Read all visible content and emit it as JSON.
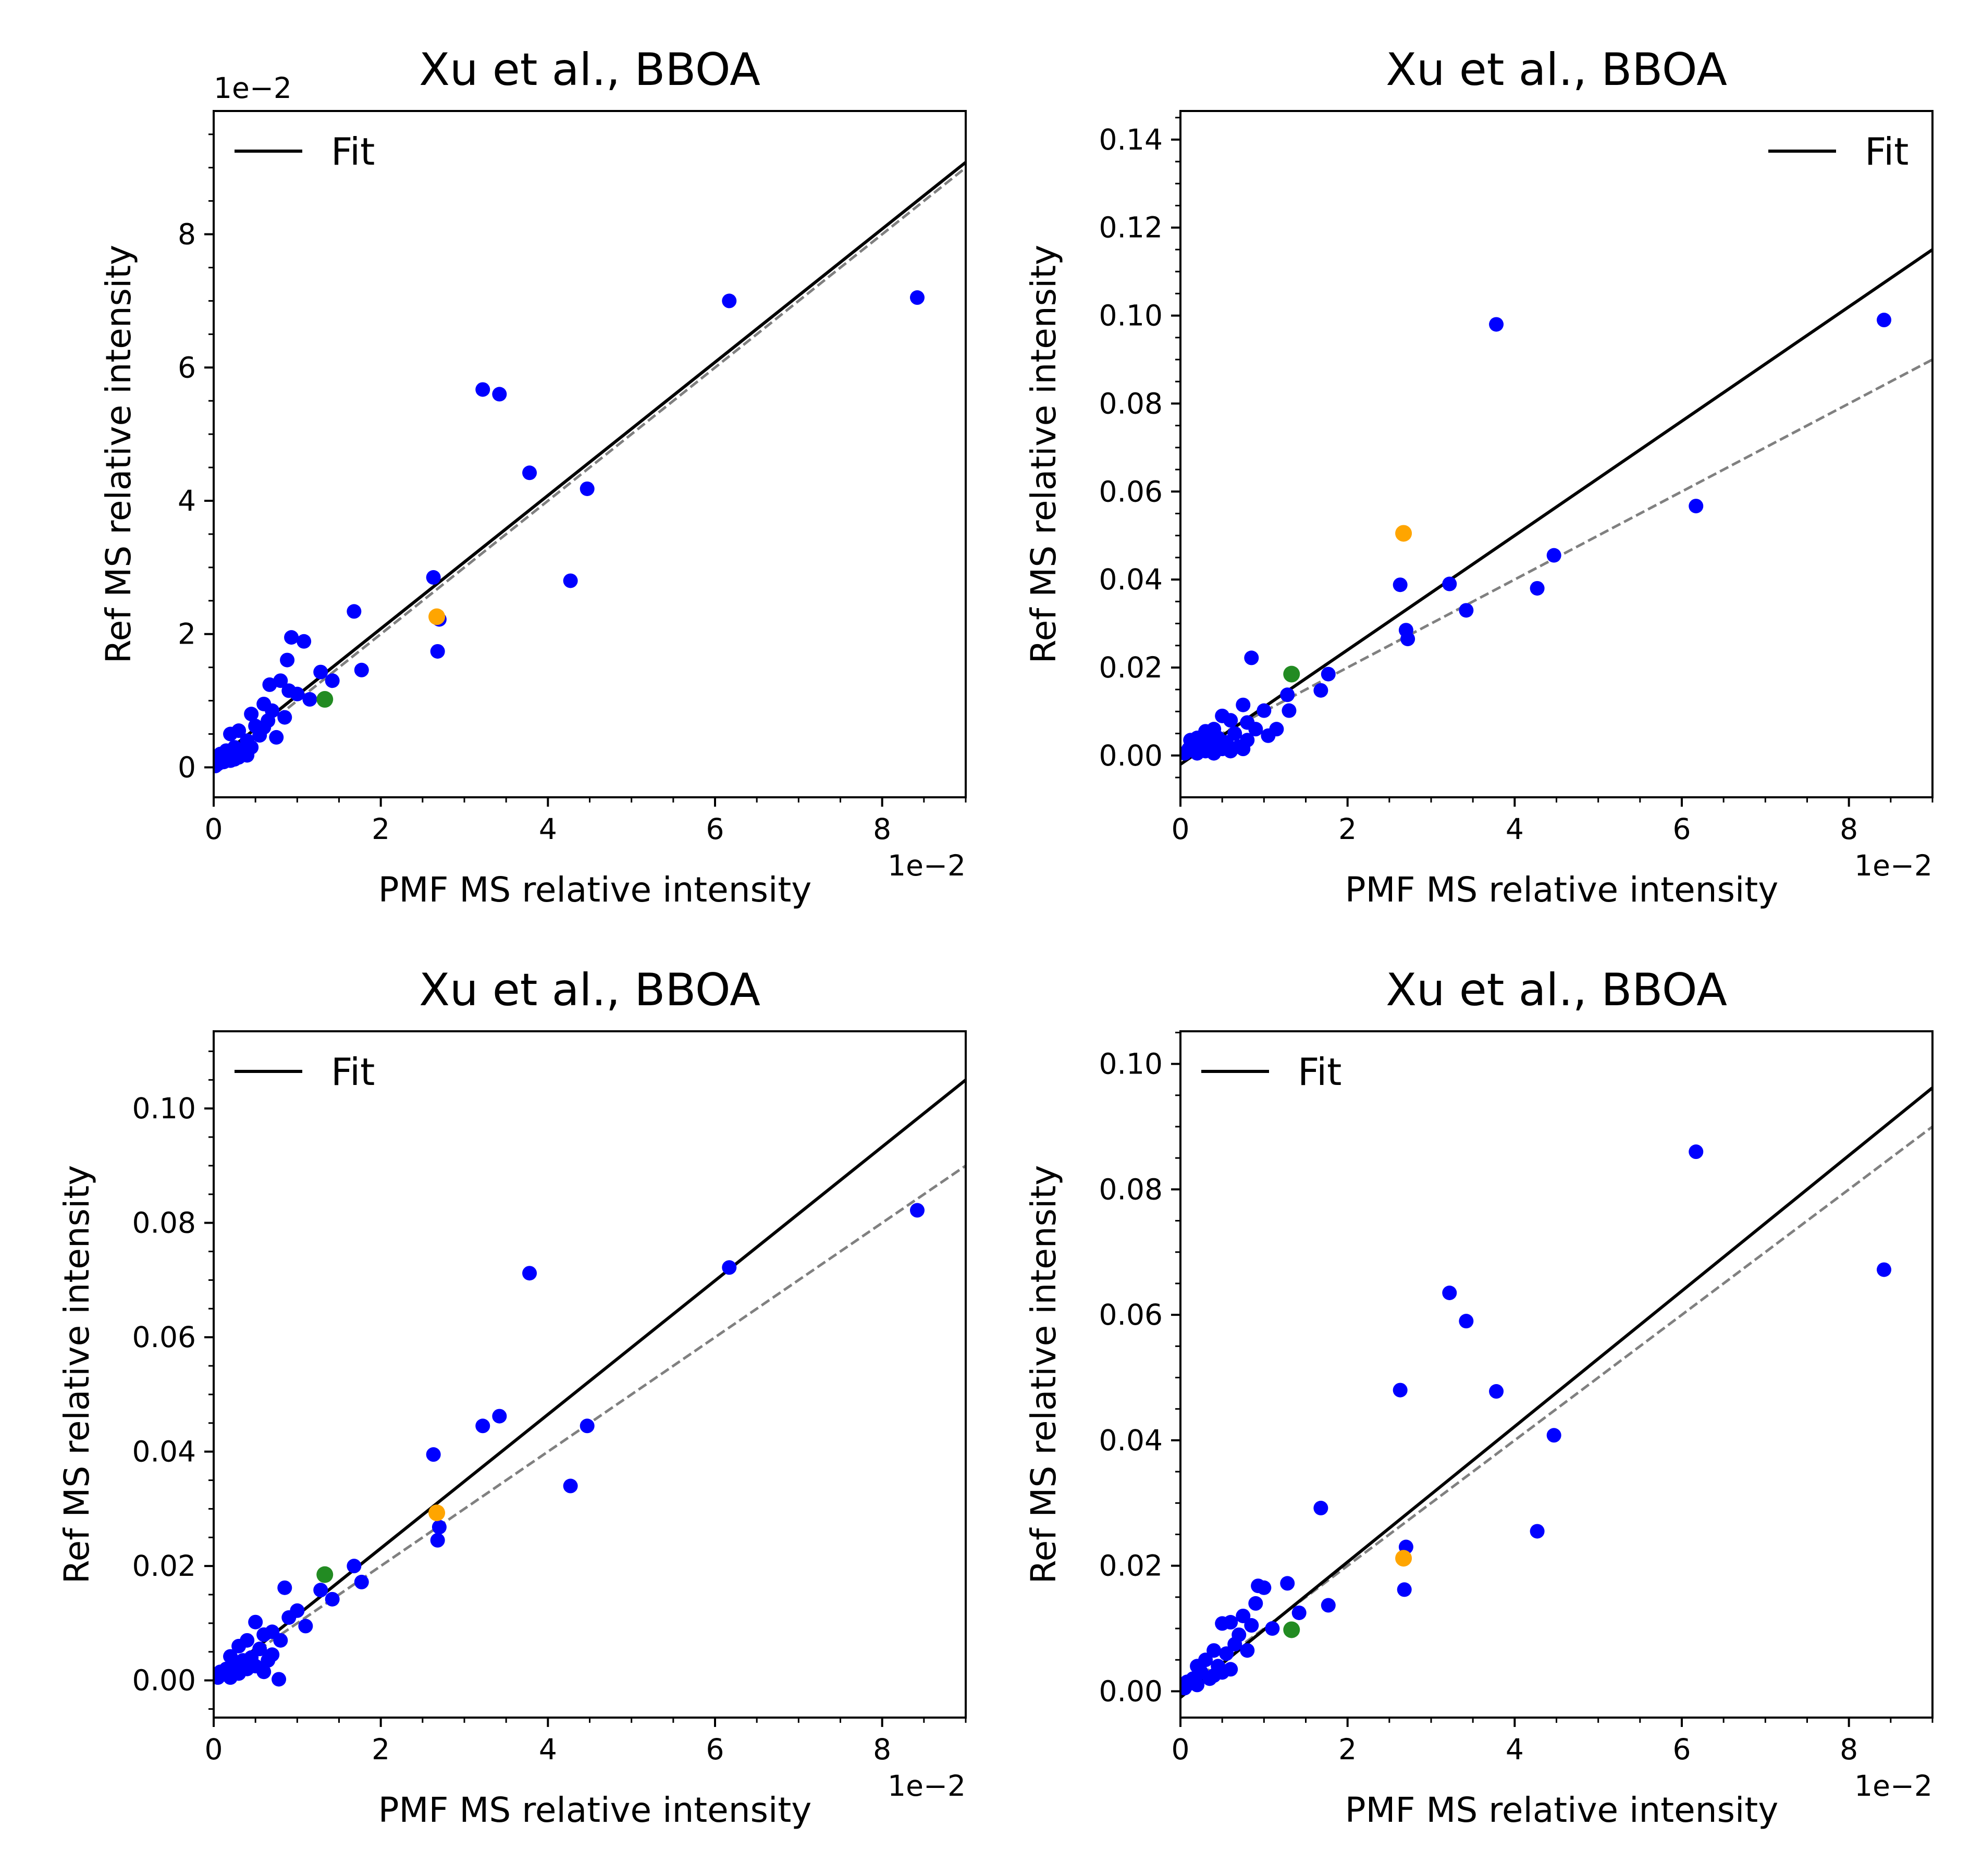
{
  "chart_data": [
    {
      "type": "scatter",
      "title": "Xu et al., BBOA",
      "xlabel": "PMF MS relative intensity",
      "ylabel": "Ref MS relative intensity",
      "x_exponent_label": "1e−2",
      "y_exponent_label": "1e−2",
      "xlim": [
        0,
        0.09
      ],
      "ylim": [
        -0.0045,
        0.0985
      ],
      "x_ticks": [
        0,
        0.02,
        0.04,
        0.06,
        0.08
      ],
      "x_tick_labels": [
        "0",
        "2",
        "4",
        "6",
        "8"
      ],
      "y_ticks": [
        0,
        0.02,
        0.04,
        0.06,
        0.08
      ],
      "y_tick_labels": [
        "0",
        "2",
        "4",
        "6",
        "8"
      ],
      "fit": {
        "label": "Fit",
        "slope": 1.0,
        "intercept": 0.0008
      },
      "reference_line": {
        "slope": 1.0,
        "intercept": 0.0
      },
      "legend": "upper left",
      "points": [
        [
          0.0842,
          0.0705
        ],
        [
          0.0617,
          0.07
        ],
        [
          0.0322,
          0.0567
        ],
        [
          0.0342,
          0.056
        ],
        [
          0.0378,
          0.0442
        ],
        [
          0.0447,
          0.0418
        ],
        [
          0.0427,
          0.028
        ],
        [
          0.0263,
          0.0285
        ],
        [
          0.027,
          0.0222
        ],
        [
          0.0268,
          0.0174
        ],
        [
          0.0168,
          0.0234
        ],
        [
          0.0177,
          0.0146
        ],
        [
          0.0093,
          0.0195
        ],
        [
          0.0108,
          0.0189
        ],
        [
          0.0088,
          0.0161
        ],
        [
          0.008,
          0.013
        ],
        [
          0.0067,
          0.0124
        ],
        [
          0.0128,
          0.0143
        ],
        [
          0.0142,
          0.013
        ],
        [
          0.009,
          0.0115
        ],
        [
          0.01,
          0.011
        ],
        [
          0.0115,
          0.0102
        ],
        [
          0.006,
          0.0095
        ],
        [
          0.007,
          0.0085
        ],
        [
          0.0045,
          0.008
        ],
        [
          0.0085,
          0.0075
        ],
        [
          0.005,
          0.0062
        ],
        [
          0.003,
          0.0055
        ],
        [
          0.002,
          0.005
        ],
        [
          0.0065,
          0.007
        ],
        [
          0.0075,
          0.0045
        ],
        [
          0.006,
          0.006
        ],
        [
          0.004,
          0.004
        ],
        [
          0.0055,
          0.0048
        ],
        [
          0.0025,
          0.003
        ],
        [
          0.0035,
          0.0025
        ],
        [
          0.0045,
          0.003
        ],
        [
          0.0015,
          0.0025
        ],
        [
          0.001,
          0.0015
        ],
        [
          0.003,
          0.0015
        ],
        [
          0.002,
          0.001
        ],
        [
          0.0005,
          0.0005
        ],
        [
          0.0012,
          0.0008
        ],
        [
          0.004,
          0.0018
        ],
        [
          0.0008,
          0.002
        ],
        [
          0.0002,
          0.0002
        ],
        [
          0.0025,
          0.0012
        ]
      ],
      "highlight_points": [
        {
          "x": 0.0267,
          "y": 0.0226,
          "color": "#ffa500"
        },
        {
          "x": 0.0133,
          "y": 0.0102,
          "color": "#228b22"
        }
      ],
      "point_color": "#0000ff"
    },
    {
      "type": "scatter",
      "title": "Xu et al., BBOA",
      "xlabel": "PMF MS relative intensity",
      "ylabel": "Ref MS relative intensity",
      "x_exponent_label": "1e−2",
      "xlim": [
        0,
        0.09
      ],
      "ylim": [
        -0.0095,
        0.1465
      ],
      "x_ticks": [
        0,
        0.02,
        0.04,
        0.06,
        0.08
      ],
      "x_tick_labels": [
        "0",
        "2",
        "4",
        "6",
        "8"
      ],
      "y_ticks": [
        0,
        0.02,
        0.04,
        0.06,
        0.08,
        0.1,
        0.12,
        0.14
      ],
      "y_tick_labels": [
        "0.00",
        "0.02",
        "0.04",
        "0.06",
        "0.08",
        "0.10",
        "0.12",
        "0.14"
      ],
      "fit": {
        "label": "Fit",
        "slope": 1.3,
        "intercept": -0.002
      },
      "reference_line": {
        "slope": 1.0,
        "intercept": 0.0
      },
      "legend": "upper right",
      "points": [
        [
          0.0842,
          0.099
        ],
        [
          0.0378,
          0.098
        ],
        [
          0.0617,
          0.0567
        ],
        [
          0.0447,
          0.0455
        ],
        [
          0.0427,
          0.038
        ],
        [
          0.0322,
          0.039
        ],
        [
          0.0263,
          0.0388
        ],
        [
          0.0342,
          0.033
        ],
        [
          0.027,
          0.0285
        ],
        [
          0.0272,
          0.0265
        ],
        [
          0.0085,
          0.0222
        ],
        [
          0.0177,
          0.0185
        ],
        [
          0.0168,
          0.0148
        ],
        [
          0.0128,
          0.0138
        ],
        [
          0.013,
          0.0102
        ],
        [
          0.0075,
          0.0115
        ],
        [
          0.01,
          0.0102
        ],
        [
          0.0115,
          0.006
        ],
        [
          0.006,
          0.008
        ],
        [
          0.005,
          0.009
        ],
        [
          0.008,
          0.0075
        ],
        [
          0.003,
          0.0055
        ],
        [
          0.004,
          0.006
        ],
        [
          0.0065,
          0.005
        ],
        [
          0.009,
          0.006
        ],
        [
          0.0105,
          0.0045
        ],
        [
          0.002,
          0.004
        ],
        [
          0.0035,
          0.003
        ],
        [
          0.0045,
          0.004
        ],
        [
          0.0055,
          0.003
        ],
        [
          0.007,
          0.002
        ],
        [
          0.0025,
          0.002
        ],
        [
          0.0015,
          0.0025
        ],
        [
          0.001,
          0.0015
        ],
        [
          0.003,
          0.001
        ],
        [
          0.005,
          0.0015
        ],
        [
          0.0005,
          0.0005
        ],
        [
          0.006,
          0.001
        ],
        [
          0.002,
          0.0005
        ],
        [
          0.008,
          0.0035
        ],
        [
          0.004,
          0.0005
        ],
        [
          0.0012,
          0.0035
        ],
        [
          0.0075,
          0.0015
        ]
      ],
      "highlight_points": [
        {
          "x": 0.0267,
          "y": 0.0505,
          "color": "#ffa500"
        },
        {
          "x": 0.0133,
          "y": 0.0185,
          "color": "#228b22"
        }
      ],
      "point_color": "#0000ff"
    },
    {
      "type": "scatter",
      "title": "Xu et al., BBOA",
      "xlabel": "PMF MS relative intensity",
      "ylabel": "Ref MS relative intensity",
      "x_exponent_label": "1e−2",
      "xlim": [
        0,
        0.09
      ],
      "ylim": [
        -0.0065,
        0.1135
      ],
      "x_ticks": [
        0,
        0.02,
        0.04,
        0.06,
        0.08
      ],
      "x_tick_labels": [
        "0",
        "2",
        "4",
        "6",
        "8"
      ],
      "y_ticks": [
        0,
        0.02,
        0.04,
        0.06,
        0.08,
        0.1
      ],
      "y_tick_labels": [
        "0.00",
        "0.02",
        "0.04",
        "0.06",
        "0.08",
        "0.10"
      ],
      "fit": {
        "label": "Fit",
        "slope": 1.17,
        "intercept": -0.0003
      },
      "reference_line": {
        "slope": 1.0,
        "intercept": 0.0
      },
      "legend": "upper left",
      "points": [
        [
          0.0842,
          0.0822
        ],
        [
          0.0617,
          0.0722
        ],
        [
          0.0378,
          0.0712
        ],
        [
          0.0447,
          0.0445
        ],
        [
          0.0342,
          0.0462
        ],
        [
          0.0322,
          0.0445
        ],
        [
          0.0263,
          0.0395
        ],
        [
          0.0427,
          0.034
        ],
        [
          0.027,
          0.0268
        ],
        [
          0.0268,
          0.0245
        ],
        [
          0.0168,
          0.02
        ],
        [
          0.0177,
          0.0172
        ],
        [
          0.0085,
          0.0162
        ],
        [
          0.0128,
          0.0158
        ],
        [
          0.0142,
          0.0142
        ],
        [
          0.01,
          0.0122
        ],
        [
          0.0078,
          0.0002
        ],
        [
          0.009,
          0.011
        ],
        [
          0.011,
          0.0095
        ],
        [
          0.005,
          0.0102
        ],
        [
          0.006,
          0.008
        ],
        [
          0.007,
          0.0085
        ],
        [
          0.004,
          0.007
        ],
        [
          0.003,
          0.006
        ],
        [
          0.002,
          0.0042
        ],
        [
          0.0055,
          0.0055
        ],
        [
          0.008,
          0.007
        ],
        [
          0.0045,
          0.004
        ],
        [
          0.0065,
          0.0035
        ],
        [
          0.0035,
          0.0035
        ],
        [
          0.0025,
          0.0025
        ],
        [
          0.0015,
          0.002
        ],
        [
          0.001,
          0.001
        ],
        [
          0.0005,
          0.0005
        ],
        [
          0.003,
          0.0012
        ],
        [
          0.005,
          0.0025
        ],
        [
          0.006,
          0.0015
        ],
        [
          0.002,
          0.0005
        ],
        [
          0.004,
          0.002
        ],
        [
          0.007,
          0.0045
        ],
        [
          0.0008,
          0.0015
        ]
      ],
      "highlight_points": [
        {
          "x": 0.0267,
          "y": 0.0293,
          "color": "#ffa500"
        },
        {
          "x": 0.0133,
          "y": 0.0185,
          "color": "#228b22"
        }
      ],
      "point_color": "#0000ff"
    },
    {
      "type": "scatter",
      "title": "Xu et al., BBOA",
      "xlabel": "PMF MS relative intensity",
      "ylabel": "Ref MS relative intensity",
      "x_exponent_label": "1e−2",
      "xlim": [
        0,
        0.09
      ],
      "ylim": [
        -0.0042,
        0.1052
      ],
      "x_ticks": [
        0,
        0.02,
        0.04,
        0.06,
        0.08
      ],
      "x_tick_labels": [
        "0",
        "2",
        "4",
        "6",
        "8"
      ],
      "y_ticks": [
        0,
        0.02,
        0.04,
        0.06,
        0.08,
        0.1
      ],
      "y_tick_labels": [
        "0.00",
        "0.02",
        "0.04",
        "0.06",
        "0.08",
        "0.10"
      ],
      "fit": {
        "label": "Fit",
        "slope": 1.08,
        "intercept": -0.001
      },
      "reference_line": {
        "slope": 1.0,
        "intercept": 0.0
      },
      "legend": "upper left",
      "points": [
        [
          0.0617,
          0.086
        ],
        [
          0.0842,
          0.0672
        ],
        [
          0.0322,
          0.0635
        ],
        [
          0.0342,
          0.059
        ],
        [
          0.0263,
          0.048
        ],
        [
          0.0378,
          0.0478
        ],
        [
          0.0447,
          0.0408
        ],
        [
          0.0168,
          0.0292
        ],
        [
          0.0427,
          0.0255
        ],
        [
          0.027,
          0.023
        ],
        [
          0.0268,
          0.0162
        ],
        [
          0.0177,
          0.0137
        ],
        [
          0.0128,
          0.0172
        ],
        [
          0.0093,
          0.0168
        ],
        [
          0.01,
          0.0165
        ],
        [
          0.009,
          0.014
        ],
        [
          0.0142,
          0.0125
        ],
        [
          0.0075,
          0.012
        ],
        [
          0.005,
          0.0108
        ],
        [
          0.006,
          0.011
        ],
        [
          0.0085,
          0.0105
        ],
        [
          0.011,
          0.01
        ],
        [
          0.007,
          0.009
        ],
        [
          0.004,
          0.0065
        ],
        [
          0.003,
          0.005
        ],
        [
          0.0055,
          0.006
        ],
        [
          0.0065,
          0.0075
        ],
        [
          0.002,
          0.004
        ],
        [
          0.0045,
          0.004
        ],
        [
          0.0025,
          0.003
        ],
        [
          0.0015,
          0.002
        ],
        [
          0.001,
          0.0012
        ],
        [
          0.0005,
          0.0005
        ],
        [
          0.0035,
          0.002
        ],
        [
          0.005,
          0.003
        ],
        [
          0.006,
          0.0035
        ],
        [
          0.002,
          0.001
        ],
        [
          0.0008,
          0.0015
        ],
        [
          0.008,
          0.0065
        ],
        [
          0.004,
          0.0025
        ]
      ],
      "highlight_points": [
        {
          "x": 0.0267,
          "y": 0.0212,
          "color": "#ffa500"
        },
        {
          "x": 0.0133,
          "y": 0.0098,
          "color": "#228b22"
        }
      ],
      "point_color": "#0000ff"
    }
  ]
}
